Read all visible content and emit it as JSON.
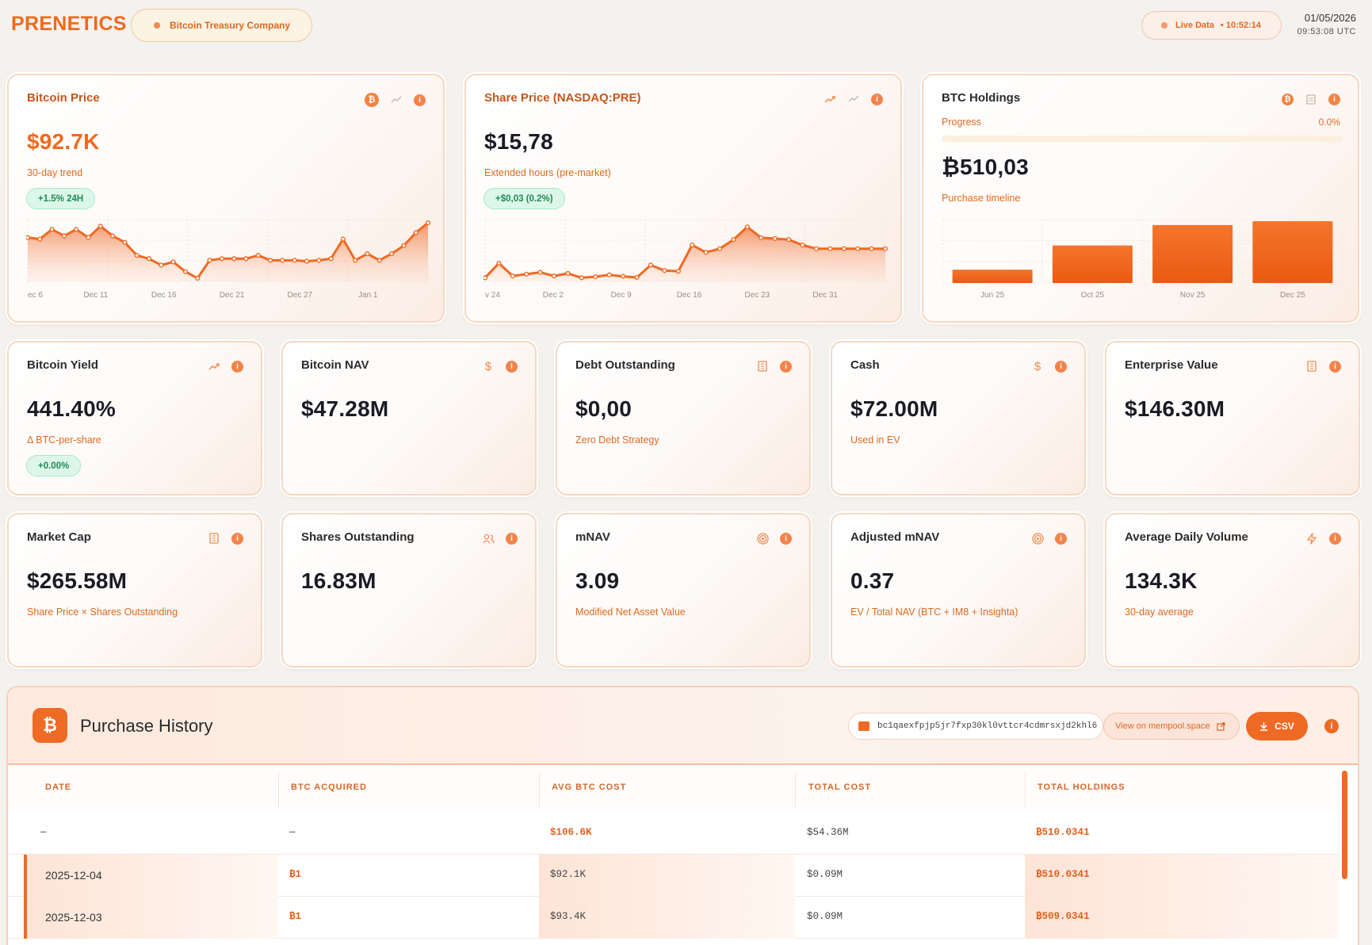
{
  "header": {
    "logo": "PRENETICS",
    "tag": "Bitcoin Treasury Company",
    "live_label": "Live Data",
    "live_time": "• 10:52:14",
    "date": "01/05/2026",
    "utc_time": "09:53:08 UTC"
  },
  "cards_top": {
    "btc_price": {
      "title": "Bitcoin Price",
      "value": "$92.7K",
      "sub": "30-day trend",
      "badge": "+1.5% 24H"
    },
    "share_price": {
      "title": "Share Price (NASDAQ:PRE)",
      "value": "$15,78",
      "sub": "Extended hours (pre-market)",
      "badge": "+$0,03 (0.2%)"
    },
    "holdings": {
      "title": "BTC Holdings",
      "progress_label": "Progress",
      "progress_value": "0.0%",
      "progress": 0.0,
      "value": "₿510,03",
      "sub": "Purchase timeline"
    }
  },
  "metrics": [
    {
      "title": "Bitcoin Yield",
      "value": "441.40%",
      "sub": "Δ BTC-per-share",
      "badge": "+0.00%",
      "icon": "trend-icon"
    },
    {
      "title": "Bitcoin NAV",
      "value": "$47.28M",
      "sub": "",
      "icon": "dollar-icon"
    },
    {
      "title": "Debt Outstanding",
      "value": "$0,00",
      "sub": "Zero Debt Strategy",
      "icon": "building-icon"
    },
    {
      "title": "Cash",
      "value": "$72.00M",
      "sub": "Used in EV",
      "icon": "dollar-icon"
    },
    {
      "title": "Enterprise Value",
      "value": "$146.30M",
      "sub": "",
      "icon": "building-icon"
    },
    {
      "title": "Market Cap",
      "value": "$265.58M",
      "sub": "Share Price × Shares Outstanding",
      "icon": "building-icon"
    },
    {
      "title": "Shares Outstanding",
      "value": "16.83M",
      "sub": "",
      "icon": "users-icon"
    },
    {
      "title": "mNAV",
      "value": "3.09",
      "sub": "Modified Net Asset Value",
      "icon": "target-icon"
    },
    {
      "title": "Adjusted mNAV",
      "value": "0.37",
      "sub": "EV / Total NAV (BTC + IM8 + Insighta)",
      "icon": "target-icon"
    },
    {
      "title": "Average Daily Volume",
      "value": "134.3K",
      "sub": "30-day average",
      "icon": "bolt-icon"
    }
  ],
  "chart_data": [
    {
      "type": "area",
      "name": "btc-price-trend",
      "x_ticks": [
        "ec 6",
        "Dec 11",
        "Dec 16",
        "Dec 21",
        "Dec 27",
        "Jan 1"
      ],
      "values": [
        90.5,
        90,
        93,
        91,
        93,
        90.5,
        94,
        91,
        89,
        85,
        84,
        82,
        83,
        80,
        78,
        83.5,
        84,
        84,
        84,
        85,
        83.5,
        83.5,
        83.5,
        83.2,
        83.5,
        84,
        90,
        83.5,
        85.5,
        83.5,
        85.5,
        88,
        92,
        95
      ],
      "ylim": [
        77,
        96
      ]
    },
    {
      "type": "area",
      "name": "share-price-trend",
      "x_ticks": [
        "v 24",
        "Dec 2",
        "Dec 9",
        "Dec 16",
        "Dec 23",
        "Dec 31"
      ],
      "values": [
        15.0,
        15.4,
        15.05,
        15.1,
        15.15,
        15.05,
        15.12,
        15.0,
        15.03,
        15.08,
        15.04,
        15.01,
        15.35,
        15.2,
        15.18,
        15.9,
        15.7,
        15.8,
        16.05,
        16.4,
        16.1,
        16.08,
        16.05,
        15.9,
        15.8,
        15.8,
        15.8,
        15.8,
        15.8,
        15.8
      ],
      "ylim": [
        14.9,
        16.6
      ]
    },
    {
      "type": "bar",
      "name": "purchase-timeline",
      "categories": [
        "Jun 25",
        "Oct 25",
        "Nov 25",
        "Dec 25"
      ],
      "values": [
        110,
        310,
        478,
        510
      ],
      "ylim": [
        0,
        510
      ]
    }
  ],
  "purchase_history": {
    "title": "Purchase History",
    "address": "bc1qaexfpjp5jr7fxp30kl0vttcr4cdmrsxjd2khl6",
    "mempool_label": "View on mempool.space",
    "csv_label": "CSV",
    "columns": [
      "DATE",
      "BTC ACQUIRED",
      "AVG BTC COST",
      "TOTAL COST",
      "TOTAL HOLDINGS"
    ],
    "rows": [
      [
        "—",
        "—",
        "$106.6K",
        "$54.36M",
        "₿510.0341"
      ],
      [
        "2025-12-04",
        "₿1",
        "$92.1K",
        "$0.09M",
        "₿510.0341"
      ],
      [
        "2025-12-03",
        "₿1",
        "$93.4K",
        "$0.09M",
        "₿509.0341"
      ]
    ]
  }
}
